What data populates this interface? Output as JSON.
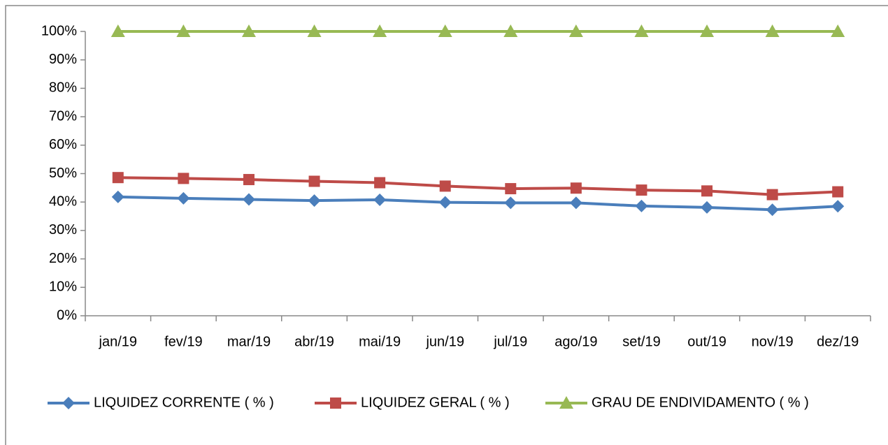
{
  "chart_data": {
    "type": "line",
    "categories": [
      "jan/19",
      "fev/19",
      "mar/19",
      "abr/19",
      "mai/19",
      "jun/19",
      "jul/19",
      "ago/19",
      "set/19",
      "out/19",
      "nov/19",
      "dez/19"
    ],
    "series": [
      {
        "name": "LIQUIDEZ CORRENTE ( % )",
        "color": "#4a7ebb",
        "marker": "diamond",
        "values": [
          41.8,
          41.3,
          40.9,
          40.5,
          40.8,
          39.9,
          39.7,
          39.7,
          38.6,
          38.1,
          37.3,
          38.5
        ]
      },
      {
        "name": "LIQUIDEZ GERAL ( % )",
        "color": "#be4b48",
        "marker": "square",
        "values": [
          48.6,
          48.3,
          47.9,
          47.3,
          46.8,
          45.6,
          44.7,
          44.9,
          44.2,
          43.9,
          42.6,
          43.6
        ]
      },
      {
        "name": "GRAU DE ENDIVIDAMENTO ( % )",
        "color": "#98b954",
        "marker": "triangle",
        "values": [
          100,
          100,
          100,
          100,
          100,
          100,
          100,
          100,
          100,
          100,
          100,
          100
        ]
      }
    ],
    "ylim": [
      0,
      100
    ],
    "yticks": [
      {
        "value": 0,
        "label": "0%"
      },
      {
        "value": 10,
        "label": "10%"
      },
      {
        "value": 20,
        "label": "20%"
      },
      {
        "value": 30,
        "label": "30%"
      },
      {
        "value": 40,
        "label": "40%"
      },
      {
        "value": 50,
        "label": "50%"
      },
      {
        "value": 60,
        "label": "60%"
      },
      {
        "value": 70,
        "label": "70%"
      },
      {
        "value": 80,
        "label": "80%"
      },
      {
        "value": 90,
        "label": "90%"
      },
      {
        "value": 100,
        "label": "100%"
      }
    ],
    "grid": false,
    "legend": "bottom"
  }
}
